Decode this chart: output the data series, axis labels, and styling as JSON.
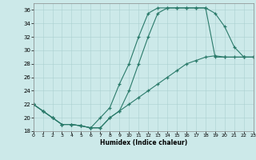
{
  "xlabel": "Humidex (Indice chaleur)",
  "bg_color": "#cce9e9",
  "grid_color": "#aad0d0",
  "line_color": "#2a7a6a",
  "xlim": [
    0,
    23
  ],
  "ylim": [
    18,
    37
  ],
  "xticks": [
    0,
    1,
    2,
    3,
    4,
    5,
    6,
    7,
    8,
    9,
    10,
    11,
    12,
    13,
    14,
    15,
    16,
    17,
    18,
    19,
    20,
    21,
    22,
    23
  ],
  "yticks": [
    18,
    20,
    22,
    24,
    26,
    28,
    30,
    32,
    34,
    36
  ],
  "line1_x": [
    0,
    1,
    2,
    3,
    4,
    5,
    6,
    7,
    8,
    9,
    10,
    11,
    12,
    13,
    14,
    15,
    16,
    17,
    18,
    19,
    20,
    21,
    22,
    23
  ],
  "line1_y": [
    22,
    21,
    20,
    19,
    19,
    18.8,
    18.5,
    18.5,
    20,
    21,
    24,
    28,
    32,
    35.5,
    36.3,
    36.3,
    36.3,
    36.3,
    36.3,
    35.5,
    33.5,
    30.5,
    29,
    29
  ],
  "line2_x": [
    0,
    1,
    2,
    3,
    4,
    5,
    6,
    7,
    8,
    9,
    10,
    11,
    12,
    13,
    14,
    15,
    16,
    17,
    18,
    19,
    20,
    22,
    23
  ],
  "line2_y": [
    22,
    21,
    20,
    19,
    19,
    18.8,
    18.5,
    20,
    21.5,
    25,
    28,
    32,
    35.5,
    36.3,
    36.3,
    36.3,
    36.3,
    36.3,
    36.3,
    29,
    29,
    29,
    29
  ],
  "line3_x": [
    0,
    1,
    2,
    3,
    4,
    5,
    6,
    7,
    8,
    9,
    10,
    11,
    12,
    13,
    14,
    15,
    16,
    17,
    18,
    19,
    20,
    21,
    22,
    23
  ],
  "line3_y": [
    22,
    21,
    20,
    19,
    19,
    18.8,
    18.5,
    18.5,
    20,
    21,
    22,
    23,
    24,
    25,
    26,
    27,
    28,
    28.5,
    29,
    29.2,
    29,
    29,
    29,
    29
  ]
}
